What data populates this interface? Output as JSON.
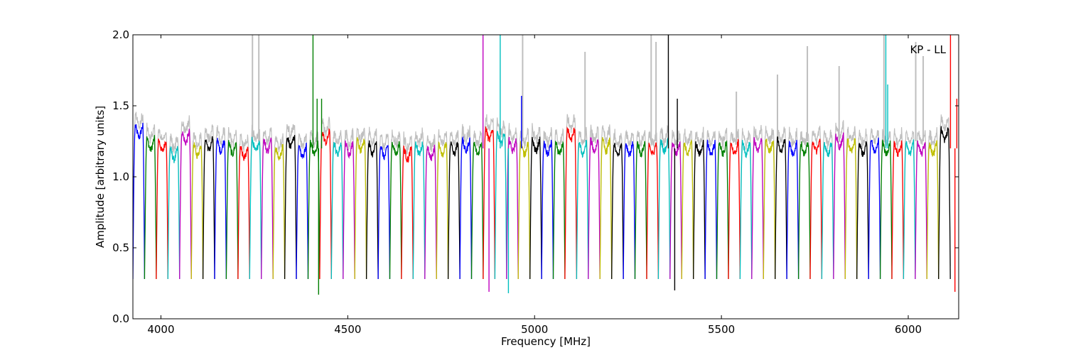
{
  "chart_data": {
    "type": "line",
    "title": "",
    "annotation": "KP - LL",
    "xlabel": "Frequency [MHz]",
    "ylabel": "Amplitude [arbitrary units]",
    "xlim": [
      3925,
      6135
    ],
    "ylim": [
      0.0,
      2.0
    ],
    "xticks": [
      4000,
      4500,
      5000,
      5500,
      6000
    ],
    "xtick_labels": [
      "4000",
      "4500",
      "5000",
      "5500",
      "6000"
    ],
    "yticks": [
      0.0,
      0.5,
      1.0,
      1.5,
      2.0
    ],
    "ytick_labels": [
      "0.0",
      "0.5",
      "1.0",
      "1.5",
      "2.0"
    ],
    "grid": false,
    "legend": "none",
    "background_series_color": "#bfbfbf",
    "channel_width_mhz": 31.25,
    "channel_start_mhz": 3925,
    "channel_colors": [
      "#0000ff",
      "#008000",
      "#ff0000",
      "#00bfbf",
      "#bf00bf",
      "#bfbf00",
      "#000000"
    ],
    "channel_levels": [
      1.32,
      1.23,
      1.22,
      1.16,
      1.28,
      1.19,
      1.23,
      1.22,
      1.2,
      1.17,
      1.22,
      1.22,
      1.17,
      1.25,
      1.18,
      1.2,
      1.28,
      1.2,
      1.2,
      1.22,
      1.2,
      1.18,
      1.2,
      1.16,
      1.2,
      1.17,
      1.2,
      1.2,
      1.22,
      1.2,
      1.3,
      1.27,
      1.22,
      1.2,
      1.22,
      1.2,
      1.2,
      1.3,
      1.2,
      1.22,
      1.22,
      1.19,
      1.2,
      1.2,
      1.2,
      1.22,
      1.2,
      1.2,
      1.2,
      1.2,
      1.2,
      1.2,
      1.2,
      1.22,
      1.22,
      1.22,
      1.2,
      1.2,
      1.22,
      1.2,
      1.25,
      1.22,
      1.2,
      1.22,
      1.2,
      1.2,
      1.2,
      1.2,
      1.2,
      1.3
    ],
    "spikes": [
      {
        "x": 4407,
        "y": 2.0,
        "color": "#008000"
      },
      {
        "x": 4418,
        "y": 1.55,
        "color": "#008000"
      },
      {
        "x": 4422,
        "y": 0.17,
        "color": "#008000"
      },
      {
        "x": 4430,
        "y": 1.55,
        "color": "#008000"
      },
      {
        "x": 4862,
        "y": 2.0,
        "color": "#bf00bf"
      },
      {
        "x": 4878,
        "y": 0.19,
        "color": "#bf00bf"
      },
      {
        "x": 4908,
        "y": 2.0,
        "color": "#00bfbf"
      },
      {
        "x": 4930,
        "y": 0.18,
        "color": "#00bfbf"
      },
      {
        "x": 4965,
        "y": 1.57,
        "color": "#0000ff"
      },
      {
        "x": 5358,
        "y": 2.0,
        "color": "#000000"
      },
      {
        "x": 5375,
        "y": 0.2,
        "color": "#000000"
      },
      {
        "x": 5382,
        "y": 1.55,
        "color": "#000000"
      },
      {
        "x": 5940,
        "y": 2.0,
        "color": "#00bfbf"
      },
      {
        "x": 5945,
        "y": 1.65,
        "color": "#00bfbf"
      },
      {
        "x": 6113,
        "y": 2.0,
        "color": "#ff0000"
      },
      {
        "x": 6125,
        "y": 0.19,
        "color": "#ff0000"
      },
      {
        "x": 6130,
        "y": 1.55,
        "color": "#ff0000"
      }
    ],
    "gray_spikes": [
      {
        "x": 4245,
        "y": 2.0
      },
      {
        "x": 4262,
        "y": 2.0
      },
      {
        "x": 4968,
        "y": 2.0
      },
      {
        "x": 5135,
        "y": 1.88
      },
      {
        "x": 5312,
        "y": 2.0
      },
      {
        "x": 5325,
        "y": 1.95
      },
      {
        "x": 5540,
        "y": 1.6
      },
      {
        "x": 5650,
        "y": 1.72
      },
      {
        "x": 5730,
        "y": 1.92
      },
      {
        "x": 5815,
        "y": 1.78
      },
      {
        "x": 5935,
        "y": 2.0
      },
      {
        "x": 6020,
        "y": 1.95
      },
      {
        "x": 6040,
        "y": 1.85
      }
    ]
  }
}
